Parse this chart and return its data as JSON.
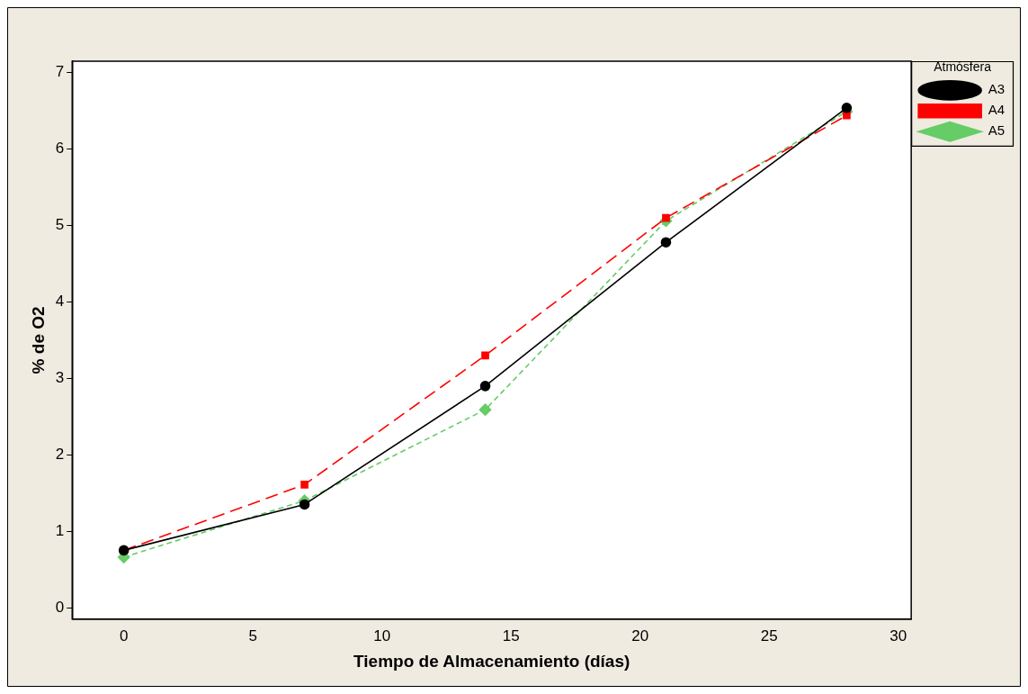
{
  "chart_data": {
    "type": "line",
    "xlabel": "Tiempo de Almacenamiento (días)",
    "ylabel": "% de O2",
    "legend_title": "Atmósfera",
    "legend": "right",
    "x": [
      0,
      7,
      14,
      21,
      28
    ],
    "xlim": [
      -2,
      30.5
    ],
    "xticks": [
      0,
      5,
      10,
      15,
      20,
      25,
      30
    ],
    "ylim": [
      -0.15,
      7.15
    ],
    "yticks": [
      0,
      1,
      2,
      3,
      4,
      5,
      6,
      7
    ],
    "grid": false,
    "series": [
      {
        "name": "A3",
        "color": "#000000",
        "marker": "circle",
        "line_style": "solid",
        "values": [
          0.75,
          1.35,
          2.9,
          4.78,
          6.54
        ]
      },
      {
        "name": "A4",
        "color": "#ff0000",
        "marker": "square",
        "line_style": "dashed",
        "values": [
          0.75,
          1.61,
          3.3,
          5.1,
          6.44
        ]
      },
      {
        "name": "A5",
        "color": "#66cc66",
        "marker": "diamond",
        "line_style": "dotted",
        "values": [
          0.66,
          1.4,
          2.59,
          5.06,
          6.49
        ]
      }
    ]
  }
}
